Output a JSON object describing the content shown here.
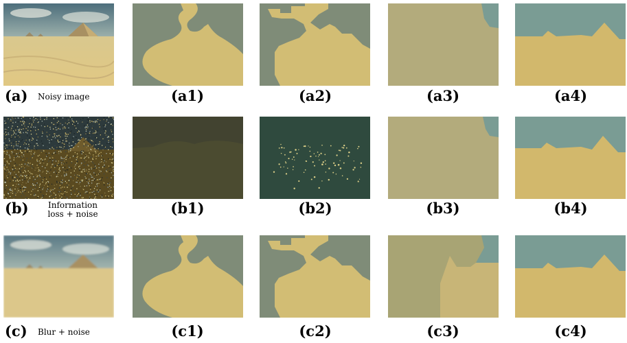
{
  "rows": [
    {
      "label": "(a)",
      "description": "Noisy image",
      "captions": [
        "(a1)",
        "(a2)",
        "(a3)",
        "(a4)"
      ]
    },
    {
      "label": "(b)",
      "description_line1": "Information",
      "description_line2": "loss + noise",
      "captions": [
        "(b1)",
        "(b2)",
        "(b3)",
        "(b4)"
      ]
    },
    {
      "label": "(c)",
      "description": "Blur + noise",
      "captions": [
        "(c1)",
        "(c2)",
        "(c3)",
        "(c4)"
      ]
    }
  ],
  "colors": {
    "sand": "#d2bd74",
    "sky": "#7f8c78",
    "olive_light": "#b3ab7c",
    "teal_sky": "#7a9c94",
    "dark_olive": "#41422e",
    "dark_teal": "#2f4a3e"
  }
}
